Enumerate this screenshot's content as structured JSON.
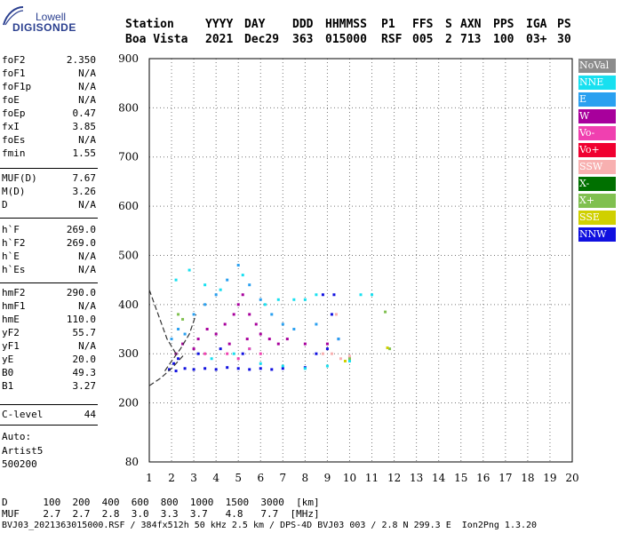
{
  "logo": {
    "top": "Lowell",
    "bottom": "DIGISONDE"
  },
  "header": {
    "labels": [
      "Station",
      "YYYY",
      "DAY",
      "DDD",
      "HHMMSS",
      "P1",
      "FFS",
      "S",
      "AXN",
      "PPS",
      "IGA",
      "PS"
    ],
    "values": [
      "Boa Vista",
      "2021",
      "Dec29",
      "363",
      "015000",
      "RSF",
      "005",
      "2",
      "713",
      "100",
      "03+",
      "30"
    ]
  },
  "params_group1": [
    {
      "label": "foF2",
      "value": "2.350"
    },
    {
      "label": "foF1",
      "value": "N/A"
    },
    {
      "label": "foF1p",
      "value": "N/A"
    },
    {
      "label": "foE",
      "value": "N/A"
    },
    {
      "label": "foEp",
      "value": "0.47"
    },
    {
      "label": "fxI",
      "value": "3.85"
    },
    {
      "label": "foEs",
      "value": "N/A"
    },
    {
      "label": "fmin",
      "value": "1.55"
    }
  ],
  "params_group2": [
    {
      "label": "MUF(D)",
      "value": "7.67"
    },
    {
      "label": "M(D)",
      "value": "3.26"
    },
    {
      "label": "D",
      "value": "N/A"
    }
  ],
  "params_group3": [
    {
      "label": "h`F",
      "value": "269.0"
    },
    {
      "label": "h`F2",
      "value": "269.0"
    },
    {
      "label": "h`E",
      "value": "N/A"
    },
    {
      "label": "h`Es",
      "value": "N/A"
    }
  ],
  "params_group4": [
    {
      "label": "hmF2",
      "value": "290.0"
    },
    {
      "label": "hmF1",
      "value": "N/A"
    },
    {
      "label": "hmE",
      "value": "110.0"
    },
    {
      "label": "yF2",
      "value": "55.7"
    },
    {
      "label": "yF1",
      "value": "N/A"
    },
    {
      "label": "yE",
      "value": "20.0"
    },
    {
      "label": "B0",
      "value": "49.3"
    },
    {
      "label": "B1",
      "value": "3.27"
    }
  ],
  "params_group5": [
    {
      "label": "C-level",
      "value": "44"
    }
  ],
  "autoscaling": {
    "line1": "Auto:",
    "line2": "Artist5",
    "line3": "500200"
  },
  "footer": {
    "d_row": "D      100  200  400  600  800  1000  1500  3000  [km]",
    "muf_row": "MUF    2.7  2.7  2.8  3.0  3.3  3.7   4.8   7.7  [MHz]",
    "file_row": "BVJ03_2021363015000.RSF / 384fx512h 50 kHz 2.5 km / DPS-4D BVJ03 003 / 2.8 N 299.3 E  Ion2Png 1.3.20"
  },
  "legend": [
    {
      "label": "NoVal",
      "color": "#8c8c8c"
    },
    {
      "label": "NNE",
      "color": "#18e0f0"
    },
    {
      "label": "E",
      "color": "#2aa0f0"
    },
    {
      "label": "W",
      "color": "#a8009c"
    },
    {
      "label": "Vo-",
      "color": "#f040b0"
    },
    {
      "label": "Vo+",
      "color": "#f00030"
    },
    {
      "label": "SSW",
      "color": "#f8b0b0"
    },
    {
      "label": "X-",
      "color": "#007000"
    },
    {
      "label": "X+",
      "color": "#80c050"
    },
    {
      "label": "SSE",
      "color": "#d0d000"
    },
    {
      "label": "NNW",
      "color": "#1010e0"
    }
  ],
  "chart_data": {
    "type": "scatter",
    "title": "",
    "xlabel": "",
    "ylabel": "",
    "xlim": [
      1,
      20
    ],
    "ylim": [
      80,
      900
    ],
    "x_ticks": [
      "1",
      "2",
      "3",
      "4",
      "5",
      "6",
      "7",
      "8",
      "9",
      "10",
      "11",
      "12",
      "13",
      "14",
      "15",
      "16",
      "17",
      "18",
      "19",
      "20"
    ],
    "y_ticks": [
      "80",
      "200",
      "300",
      "400",
      "500",
      "600",
      "700",
      "800",
      "900"
    ],
    "series": [
      {
        "name": "NNW",
        "color": "#1010e0",
        "points": [
          [
            1.9,
            268
          ],
          [
            2.2,
            265
          ],
          [
            2.6,
            270
          ],
          [
            3.0,
            268
          ],
          [
            3.5,
            270
          ],
          [
            4.0,
            268
          ],
          [
            4.5,
            272
          ],
          [
            5.0,
            270
          ],
          [
            5.5,
            268
          ],
          [
            6.0,
            270
          ],
          [
            6.5,
            268
          ],
          [
            7.0,
            270
          ],
          [
            8.0,
            272
          ],
          [
            8.5,
            300
          ],
          [
            9.0,
            310
          ],
          [
            9.5,
            330
          ],
          [
            9.3,
            420
          ],
          [
            8.8,
            420
          ],
          [
            9.2,
            380
          ],
          [
            2.1,
            280
          ],
          [
            2.3,
            290
          ],
          [
            3.2,
            300
          ],
          [
            4.2,
            310
          ],
          [
            5.2,
            300
          ]
        ]
      },
      {
        "name": "W",
        "color": "#a8009c",
        "points": [
          [
            3.2,
            330
          ],
          [
            3.6,
            350
          ],
          [
            4.0,
            340
          ],
          [
            4.4,
            360
          ],
          [
            4.8,
            380
          ],
          [
            5.0,
            400
          ],
          [
            5.2,
            420
          ],
          [
            5.5,
            380
          ],
          [
            5.8,
            360
          ],
          [
            6.0,
            340
          ],
          [
            6.4,
            330
          ],
          [
            6.8,
            320
          ],
          [
            4.6,
            320
          ],
          [
            5.4,
            330
          ],
          [
            2.2,
            300
          ],
          [
            2.5,
            320
          ],
          [
            3.0,
            310
          ],
          [
            7.2,
            330
          ],
          [
            8.0,
            320
          ],
          [
            9.0,
            320
          ]
        ]
      },
      {
        "name": "NNE",
        "color": "#18e0f0",
        "points": [
          [
            2.2,
            450
          ],
          [
            2.8,
            470
          ],
          [
            3.5,
            440
          ],
          [
            4.2,
            430
          ],
          [
            5.2,
            460
          ],
          [
            6.2,
            400
          ],
          [
            6.8,
            410
          ],
          [
            7.5,
            410
          ],
          [
            8.0,
            410
          ],
          [
            8.5,
            420
          ],
          [
            10.5,
            420
          ],
          [
            11.0,
            420
          ],
          [
            6.0,
            280
          ],
          [
            7.0,
            275
          ],
          [
            8.0,
            270
          ],
          [
            9.0,
            275
          ],
          [
            10.0,
            285
          ],
          [
            4.8,
            300
          ],
          [
            5.5,
            310
          ],
          [
            3.8,
            290
          ]
        ]
      },
      {
        "name": "E",
        "color": "#2aa0f0",
        "points": [
          [
            2.0,
            330
          ],
          [
            2.3,
            350
          ],
          [
            2.6,
            340
          ],
          [
            3.0,
            380
          ],
          [
            3.5,
            400
          ],
          [
            4.0,
            420
          ],
          [
            4.5,
            450
          ],
          [
            5.0,
            480
          ],
          [
            5.5,
            440
          ],
          [
            6.0,
            410
          ],
          [
            6.5,
            380
          ],
          [
            7.0,
            360
          ],
          [
            7.5,
            350
          ],
          [
            8.5,
            360
          ],
          [
            9.5,
            330
          ]
        ]
      },
      {
        "name": "SSW",
        "color": "#f8b0b0",
        "points": [
          [
            9.2,
            300
          ],
          [
            9.6,
            290
          ],
          [
            10.0,
            295
          ],
          [
            9.4,
            380
          ],
          [
            8.8,
            300
          ]
        ]
      },
      {
        "name": "Vo-",
        "color": "#f040b0",
        "points": [
          [
            4.5,
            300
          ],
          [
            5.0,
            290
          ],
          [
            5.5,
            310
          ],
          [
            6.0,
            300
          ],
          [
            3.5,
            300
          ]
        ]
      },
      {
        "name": "X+",
        "color": "#80c050",
        "points": [
          [
            2.3,
            380
          ],
          [
            2.5,
            370
          ],
          [
            10.0,
            290
          ],
          [
            11.6,
            385
          ],
          [
            11.8,
            310
          ]
        ]
      },
      {
        "name": "SSE",
        "color": "#d0d000",
        "points": [
          [
            9.8,
            285
          ],
          [
            11.7,
            312
          ]
        ]
      }
    ],
    "trace_curves": [
      {
        "points": [
          [
            1,
            430
          ],
          [
            1.4,
            380
          ],
          [
            1.8,
            330
          ],
          [
            2.2,
            300
          ]
        ]
      },
      {
        "points": [
          [
            1,
            235
          ],
          [
            1.5,
            250
          ],
          [
            2.0,
            270
          ],
          [
            2.6,
            300
          ]
        ]
      },
      {
        "points": [
          [
            1.7,
            265
          ],
          [
            2.0,
            285
          ],
          [
            2.4,
            310
          ],
          [
            2.8,
            340
          ],
          [
            3.1,
            380
          ]
        ]
      }
    ]
  }
}
